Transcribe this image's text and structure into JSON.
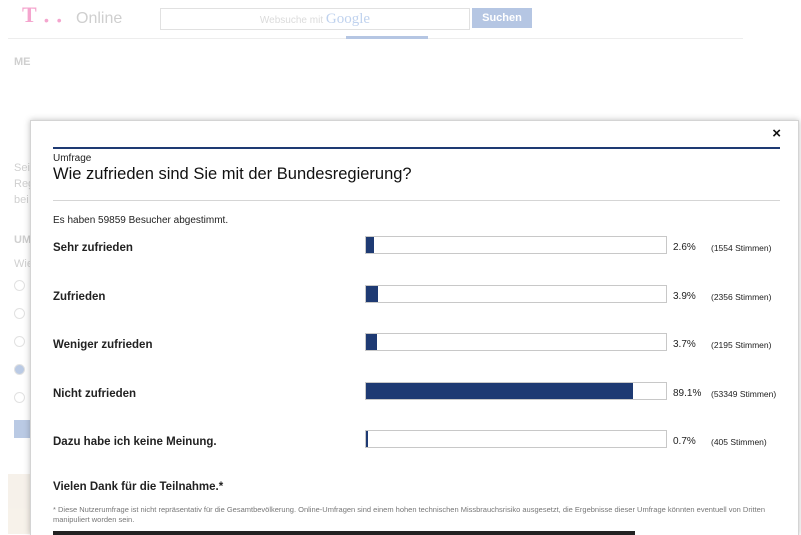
{
  "background": {
    "logo_text": "Online",
    "search_placeholder_prefix": "Websuche mit",
    "search_brand": "Google",
    "search_button": "Suchen",
    "sidebar_snippets": [
      "ME",
      "Seit",
      "Reg",
      "bei",
      "UM",
      "Wie"
    ]
  },
  "modal": {
    "close_label": "×",
    "kicker": "Umfrage",
    "question": "Wie zufrieden sind Sie mit der Bundesregierung?",
    "voters_text": "Es haben 59859 Besucher abgestimmt.",
    "options": [
      {
        "label": "Sehr zufrieden",
        "percent": 2.6,
        "percent_text": "2.6%",
        "votes_text": "(1554 Stimmen)"
      },
      {
        "label": "Zufrieden",
        "percent": 3.9,
        "percent_text": "3.9%",
        "votes_text": "(2356 Stimmen)"
      },
      {
        "label": "Weniger zufrieden",
        "percent": 3.7,
        "percent_text": "3.7%",
        "votes_text": "(2195 Stimmen)"
      },
      {
        "label": "Nicht zufrieden",
        "percent": 89.1,
        "percent_text": "89.1%",
        "votes_text": "(53349 Stimmen)"
      },
      {
        "label": "Dazu habe ich keine Meinung.",
        "percent": 0.7,
        "percent_text": "0.7%",
        "votes_text": "(405 Stimmen)"
      }
    ],
    "thanks": "Vielen Dank für die Teilnahme.*",
    "disclaimer": "* Diese Nutzerumfrage ist nicht repräsentativ für die Gesamtbevölkerung. Online-Umfragen sind einem hohen technischen Missbrauchsrisiko ausgesetzt, die Ergebnisse dieser Umfrage könnten eventuell von Dritten manipuliert worden sein.",
    "accent_color": "#1e3a73"
  }
}
